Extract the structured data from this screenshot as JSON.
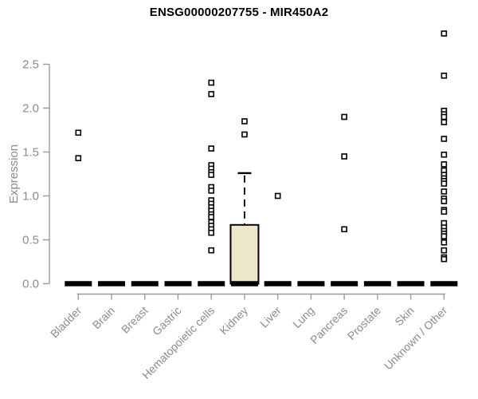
{
  "chart_data": {
    "type": "boxplot",
    "title": "ENSG00000207755 - MIR450A2",
    "xlabel": "",
    "ylabel": "Expression",
    "ylim": [
      0,
      2.9
    ],
    "yticks": [
      "0.0",
      "0.5",
      "1.0",
      "1.5",
      "2.0",
      "2.5"
    ],
    "legend": "none",
    "grid": "off",
    "categories": [
      "Bladder",
      "Brain",
      "Breast",
      "Gastric",
      "Hematopoietic cells",
      "Kidney",
      "Liver",
      "Lung",
      "Pancreas",
      "Prostate",
      "Skin",
      "Unknown / Other"
    ],
    "series": [
      {
        "name": "Bladder",
        "whisker_low": 0,
        "q1": 0,
        "median": 0,
        "q3": 0,
        "whisker_high": 0,
        "outliers": [
          1.72,
          1.43
        ]
      },
      {
        "name": "Brain",
        "whisker_low": 0,
        "q1": 0,
        "median": 0,
        "q3": 0,
        "whisker_high": 0,
        "outliers": []
      },
      {
        "name": "Breast",
        "whisker_low": 0,
        "q1": 0,
        "median": 0,
        "q3": 0,
        "whisker_high": 0,
        "outliers": []
      },
      {
        "name": "Gastric",
        "whisker_low": 0,
        "q1": 0,
        "median": 0,
        "q3": 0,
        "whisker_high": 0,
        "outliers": []
      },
      {
        "name": "Hematopoietic cells",
        "whisker_low": 0,
        "q1": 0,
        "median": 0,
        "q3": 0,
        "whisker_high": 0,
        "outliers": [
          2.29,
          2.16,
          1.54,
          1.35,
          1.31,
          1.27,
          1.24,
          1.1,
          1.06,
          0.95,
          0.91,
          0.87,
          0.83,
          0.79,
          0.76,
          0.7,
          0.66,
          0.62,
          0.58,
          0.38
        ]
      },
      {
        "name": "Kidney",
        "whisker_low": 0,
        "q1": 0,
        "median": 0,
        "q3": 0.67,
        "whisker_high": 1.26,
        "outliers": [
          1.85,
          1.7
        ]
      },
      {
        "name": "Liver",
        "whisker_low": 0,
        "q1": 0,
        "median": 0,
        "q3": 0,
        "whisker_high": 0,
        "outliers": [
          1.0
        ]
      },
      {
        "name": "Lung",
        "whisker_low": 0,
        "q1": 0,
        "median": 0,
        "q3": 0,
        "whisker_high": 0,
        "outliers": []
      },
      {
        "name": "Pancreas",
        "whisker_low": 0,
        "q1": 0,
        "median": 0,
        "q3": 0,
        "whisker_high": 0,
        "outliers": [
          1.9,
          1.45,
          0.62
        ]
      },
      {
        "name": "Prostate",
        "whisker_low": 0,
        "q1": 0,
        "median": 0,
        "q3": 0,
        "whisker_high": 0,
        "outliers": []
      },
      {
        "name": "Skin",
        "whisker_low": 0,
        "q1": 0,
        "median": 0,
        "q3": 0,
        "whisker_high": 0,
        "outliers": []
      },
      {
        "name": "Unknown / Other",
        "whisker_low": 0,
        "q1": 0,
        "median": 0,
        "q3": 0,
        "whisker_high": 0,
        "outliers": [
          2.85,
          2.37,
          1.97,
          1.93,
          1.9,
          1.84,
          1.65,
          1.47,
          1.36,
          1.29,
          1.24,
          1.2,
          1.17,
          1.14,
          1.05,
          0.97,
          0.94,
          0.84,
          0.82,
          0.69,
          0.64,
          0.6,
          0.57,
          0.54,
          0.47,
          0.38,
          0.3,
          0.28
        ]
      }
    ],
    "colors": {
      "box_fill": "#ECE6CB",
      "box_stroke": "#000000",
      "median": "#000000",
      "whisker": "#000000",
      "outlier_stroke": "#000000",
      "outlier_fill": "#ffffff",
      "axis_line": "#9a9a9a",
      "tick_text": "#8c8c8c",
      "title_text": "#000000"
    }
  }
}
